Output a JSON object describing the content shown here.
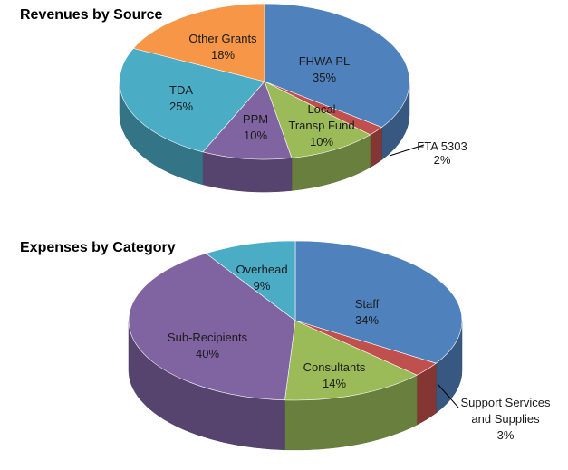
{
  "chart_data": [
    {
      "type": "pie",
      "title": "Revenues by Source",
      "series": [
        {
          "label": "FHWA PL",
          "value": 35,
          "pct": "35%",
          "color": "#4f81bd"
        },
        {
          "label": "FTA 5303",
          "value": 2,
          "pct": "2%",
          "color": "#c0504d"
        },
        {
          "label": "Local Transp Fund",
          "value": 10,
          "pct": "10%",
          "color": "#9bbb59"
        },
        {
          "label": "PPM",
          "value": 10,
          "pct": "10%",
          "color": "#8064a2"
        },
        {
          "label": "TDA",
          "value": 25,
          "pct": "25%",
          "color": "#4bacc6"
        },
        {
          "label": "Other Grants",
          "value": 18,
          "pct": "18%",
          "color": "#f79646"
        }
      ]
    },
    {
      "type": "pie",
      "title": "Expenses by Category",
      "series": [
        {
          "label": "Staff",
          "value": 34,
          "pct": "34%",
          "color": "#4f81bd"
        },
        {
          "label": "Support Services and Supplies",
          "value": 3,
          "pct": "3%",
          "color": "#c0504d"
        },
        {
          "label": "Consultants",
          "value": 14,
          "pct": "14%",
          "color": "#9bbb59"
        },
        {
          "label": "Sub-Recipients",
          "value": 40,
          "pct": "40%",
          "color": "#8064a2"
        },
        {
          "label": "Overhead",
          "value": 9,
          "pct": "9%",
          "color": "#4bacc6"
        }
      ]
    }
  ]
}
